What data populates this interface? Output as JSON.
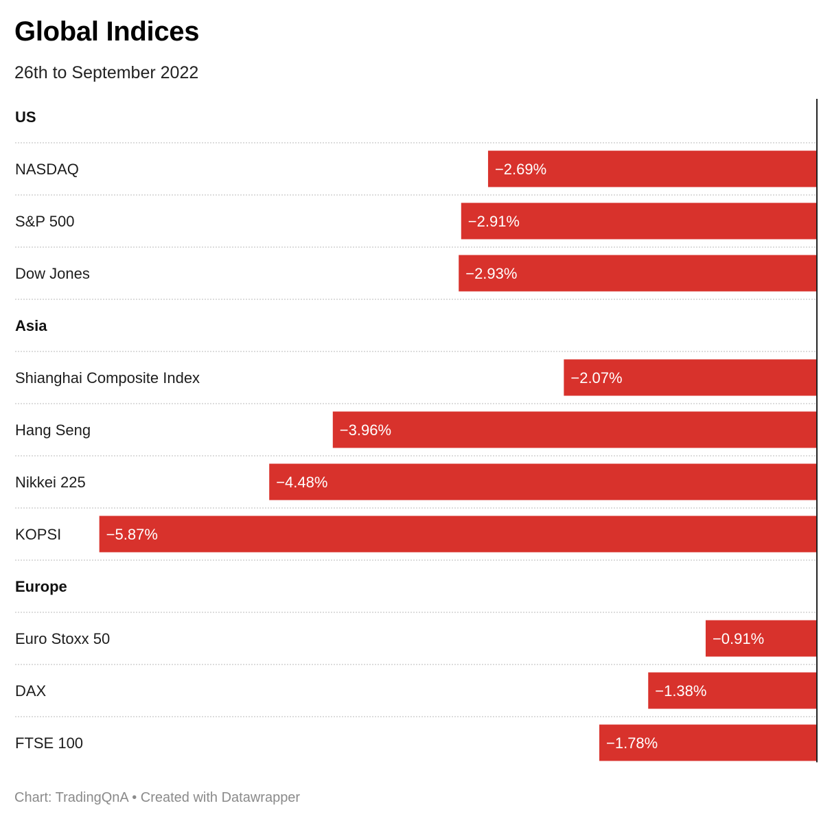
{
  "header": {
    "title": "Global Indices",
    "subtitle": "26th to September 2022"
  },
  "footer": {
    "source": "Chart: TradingQnA • Created with Datawrapper"
  },
  "colors": {
    "bar": "#d8322c",
    "bar_label": "#ffffff",
    "grid": "#c8c8c8",
    "axis": "#222222"
  },
  "chart_data": {
    "type": "bar",
    "orientation": "horizontal",
    "title": "Global Indices",
    "subtitle": "26th to September 2022",
    "xlim": [
      -6.57,
      0
    ],
    "value_format": "percent",
    "groups": [
      {
        "name": "US",
        "items": [
          {
            "label": "NASDAQ",
            "value": -2.69,
            "value_label": "−2.69%"
          },
          {
            "label": "S&P 500",
            "value": -2.91,
            "value_label": "−2.91%"
          },
          {
            "label": "Dow Jones",
            "value": -2.93,
            "value_label": "−2.93%"
          }
        ]
      },
      {
        "name": "Asia",
        "items": [
          {
            "label": "Shianghai Composite Index",
            "value": -2.07,
            "value_label": "−2.07%"
          },
          {
            "label": "Hang Seng",
            "value": -3.96,
            "value_label": "−3.96%"
          },
          {
            "label": "Nikkei 225",
            "value": -4.48,
            "value_label": "−4.48%"
          },
          {
            "label": "KOPSI",
            "value": -5.87,
            "value_label": "−5.87%"
          }
        ]
      },
      {
        "name": "Europe",
        "items": [
          {
            "label": "Euro Stoxx 50",
            "value": -0.91,
            "value_label": "−0.91%"
          },
          {
            "label": "DAX",
            "value": -1.38,
            "value_label": "−1.38%"
          },
          {
            "label": "FTSE 100",
            "value": -1.78,
            "value_label": "−1.78%"
          }
        ]
      }
    ]
  }
}
